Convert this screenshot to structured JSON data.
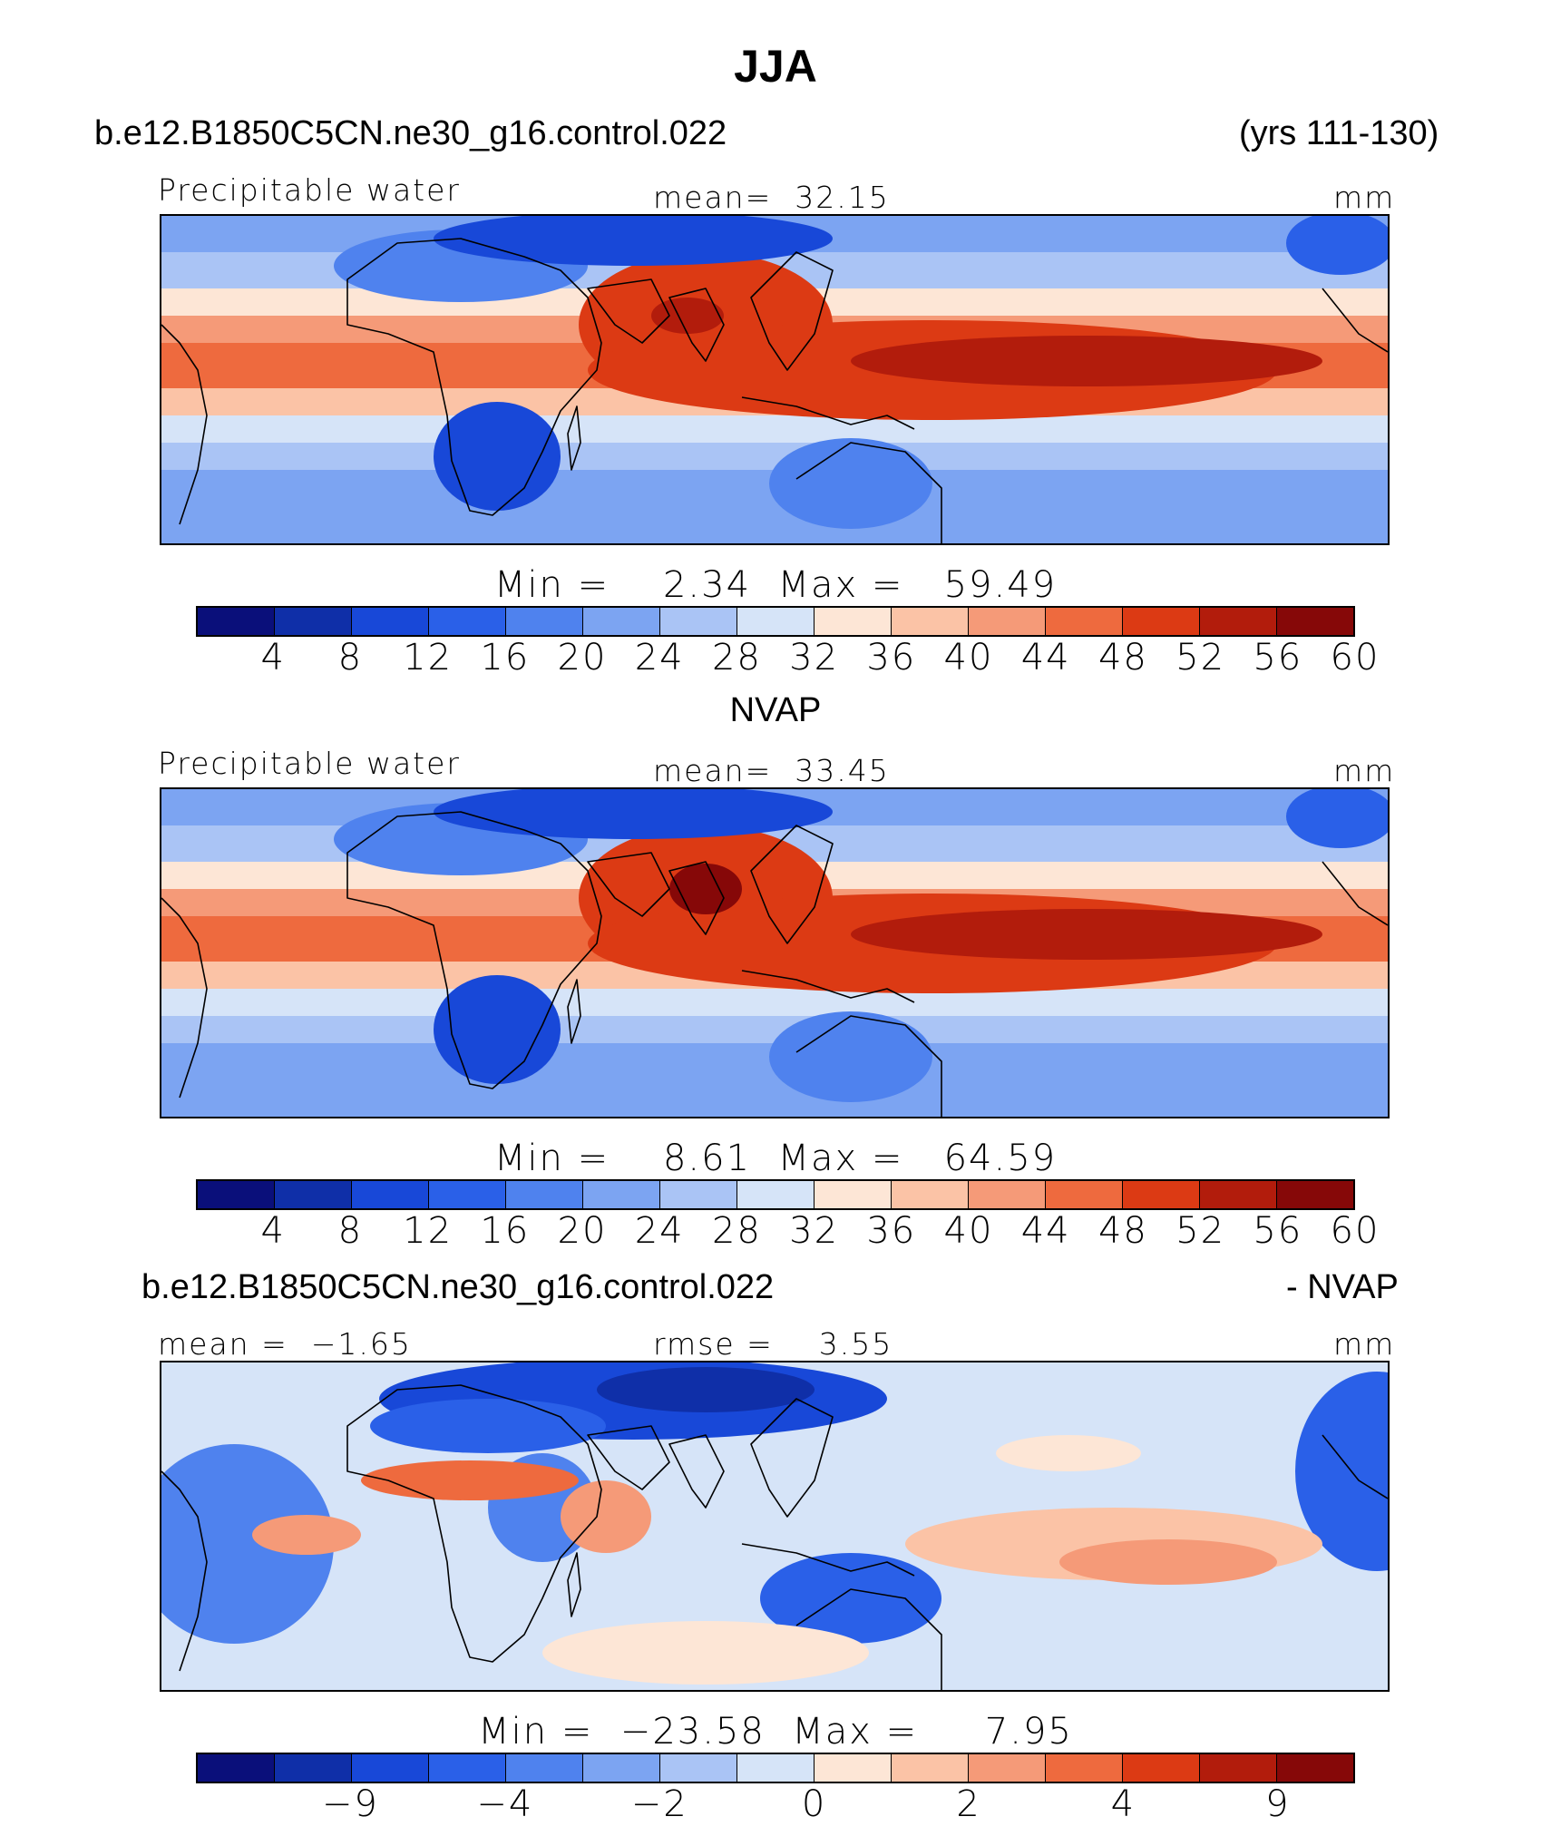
{
  "title": "JJA",
  "case_name": "b.e12.B1850C5CN.ne30_g16.control.022",
  "years": "(yrs 111-130)",
  "obs_name": "NVAP",
  "diff_case_name": "b.e12.B1850C5CN.ne30_g16.control.022",
  "diff_suffix": "- NVAP",
  "colors": [
    "#0a0f7a",
    "#0f2fa8",
    "#1848d8",
    "#2a60e8",
    "#4f82ee",
    "#7ca4f2",
    "#aac4f5",
    "#d6e4f8",
    "#fde6d6",
    "#fbc3a6",
    "#f59a78",
    "#ee6a3e",
    "#dc3a14",
    "#b21c0c",
    "#860808"
  ],
  "chart_data": [
    {
      "type": "heatmap",
      "panel": "model",
      "variable": "Precipitable water",
      "mean_label": "mean=",
      "mean_value": "32.15",
      "units": "mm",
      "min_label": "Min =",
      "min_value": "2.34",
      "max_label": "Max =",
      "max_value": "59.49",
      "colorbar_ticks": [
        "4",
        "8",
        "12",
        "16",
        "20",
        "24",
        "28",
        "32",
        "36",
        "40",
        "44",
        "48",
        "52",
        "56",
        "60"
      ]
    },
    {
      "type": "heatmap",
      "panel": "obs",
      "variable": "Precipitable water",
      "mean_label": "mean=",
      "mean_value": "33.45",
      "units": "mm",
      "min_label": "Min =",
      "min_value": "8.61",
      "max_label": "Max =",
      "max_value": "64.59",
      "colorbar_ticks": [
        "4",
        "8",
        "12",
        "16",
        "20",
        "24",
        "28",
        "32",
        "36",
        "40",
        "44",
        "48",
        "52",
        "56",
        "60"
      ]
    },
    {
      "type": "heatmap",
      "panel": "difference",
      "mean_label": "mean =",
      "mean_value": "−1.65",
      "rmse_label": "rmse =",
      "rmse_value": "3.55",
      "units": "mm",
      "min_label": "Min =",
      "min_value": "−23.58",
      "max_label": "Max =",
      "max_value": "7.95",
      "colorbar_ticks": [
        "−9",
        "−4",
        "−2",
        "0",
        "2",
        "4",
        "9"
      ]
    }
  ]
}
